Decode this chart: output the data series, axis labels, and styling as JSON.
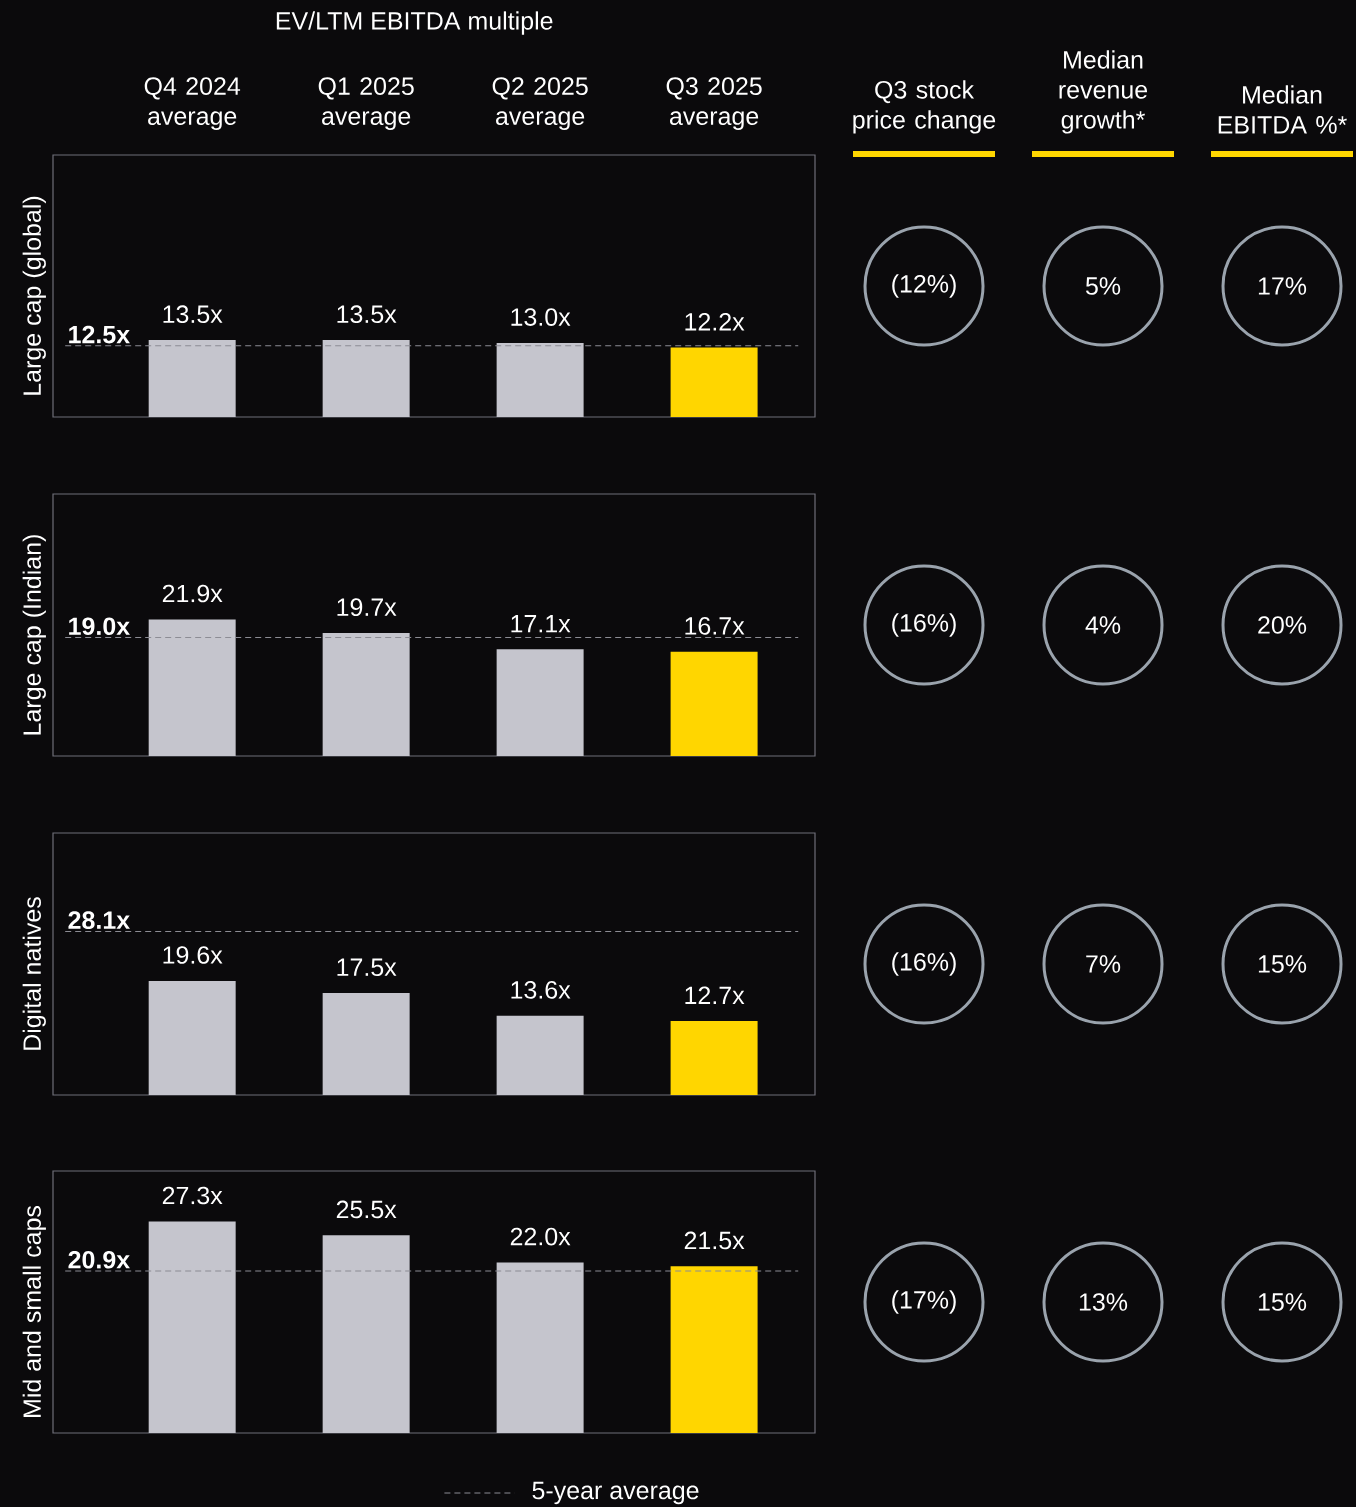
{
  "chart_data": [
    {
      "type": "bar",
      "title": "EV/LTM EBITDA multiple",
      "ylabel": "Large cap (global)",
      "categories": [
        "Q4 2024 average",
        "Q1 2025 average",
        "Q2 2025 average",
        "Q3 2025 average"
      ],
      "values": [
        13.5,
        13.5,
        13.0,
        12.2
      ],
      "value_labels": [
        "13.5x",
        "13.5x",
        "13.0x",
        "12.2x"
      ],
      "colors": [
        "#c5c5cd",
        "#c5c5cd",
        "#c5c5cd",
        "#ffd600"
      ],
      "ylim": [
        0,
        46
      ],
      "tick_labels": "x",
      "ref_lines": [
        {
          "axis": "y",
          "value": 12.5,
          "label": "12.5x",
          "color": "#8c8c94",
          "line_style": "dashed"
        }
      ]
    },
    {
      "type": "bar",
      "ylabel": "Large cap (Indian)",
      "categories": [
        null,
        null,
        null,
        null
      ],
      "values": [
        21.9,
        19.7,
        17.1,
        16.7
      ],
      "value_labels": [
        "21.9x",
        "19.7x",
        "17.1x",
        "16.7x"
      ],
      "colors": [
        "#c5c5cd",
        "#c5c5cd",
        "#c5c5cd",
        "#ffd600"
      ],
      "ylim": [
        0,
        42
      ],
      "ref_lines": [
        {
          "axis": "y",
          "value": 19.0,
          "label": "19.0x",
          "color": "#8c8c94",
          "line_style": "dashed"
        }
      ]
    },
    {
      "type": "bar",
      "ylabel": "Digital natives",
      "categories": [
        null,
        null,
        null,
        null
      ],
      "values": [
        19.6,
        17.5,
        13.6,
        12.7
      ],
      "value_labels": [
        "19.6x",
        "17.5x",
        "13.6x",
        "12.7x"
      ],
      "colors": [
        "#c5c5cd",
        "#c5c5cd",
        "#c5c5cd",
        "#ffd600"
      ],
      "ylim": [
        0,
        45
      ],
      "ref_lines": [
        {
          "axis": "y",
          "value": 28.1,
          "label": "28.1x",
          "color": "#8c8c94",
          "line_style": "dashed"
        }
      ]
    },
    {
      "type": "bar",
      "ylabel": "Mid and small caps",
      "categories": [
        null,
        null,
        null,
        null
      ],
      "values": [
        27.3,
        25.5,
        22.0,
        21.5
      ],
      "value_labels": [
        "27.3x",
        "25.5x",
        "22.0x",
        "21.5x"
      ],
      "colors": [
        "#c5c5cd",
        "#c5c5cd",
        "#c5c5cd",
        "#ffd600"
      ],
      "ylim": [
        0,
        33.8
      ],
      "ref_lines": [
        {
          "axis": "y",
          "value": 20.9,
          "label": "20.9x",
          "color": "#8c8c94",
          "line_style": "dashed"
        }
      ],
      "annotations": [
        "5-year average"
      ]
    },
    {
      "type": "other",
      "categories": [
        "Q3 stock price change",
        "Median revenue growth*",
        "Median EBITDA %*"
      ],
      "annotations": [
        "(12%)",
        "5%",
        "17%",
        "(16%)",
        "4%",
        "20%",
        "(16%)",
        "7%",
        "15%",
        "(17%)",
        "13%",
        "15%"
      ]
    }
  ]
}
